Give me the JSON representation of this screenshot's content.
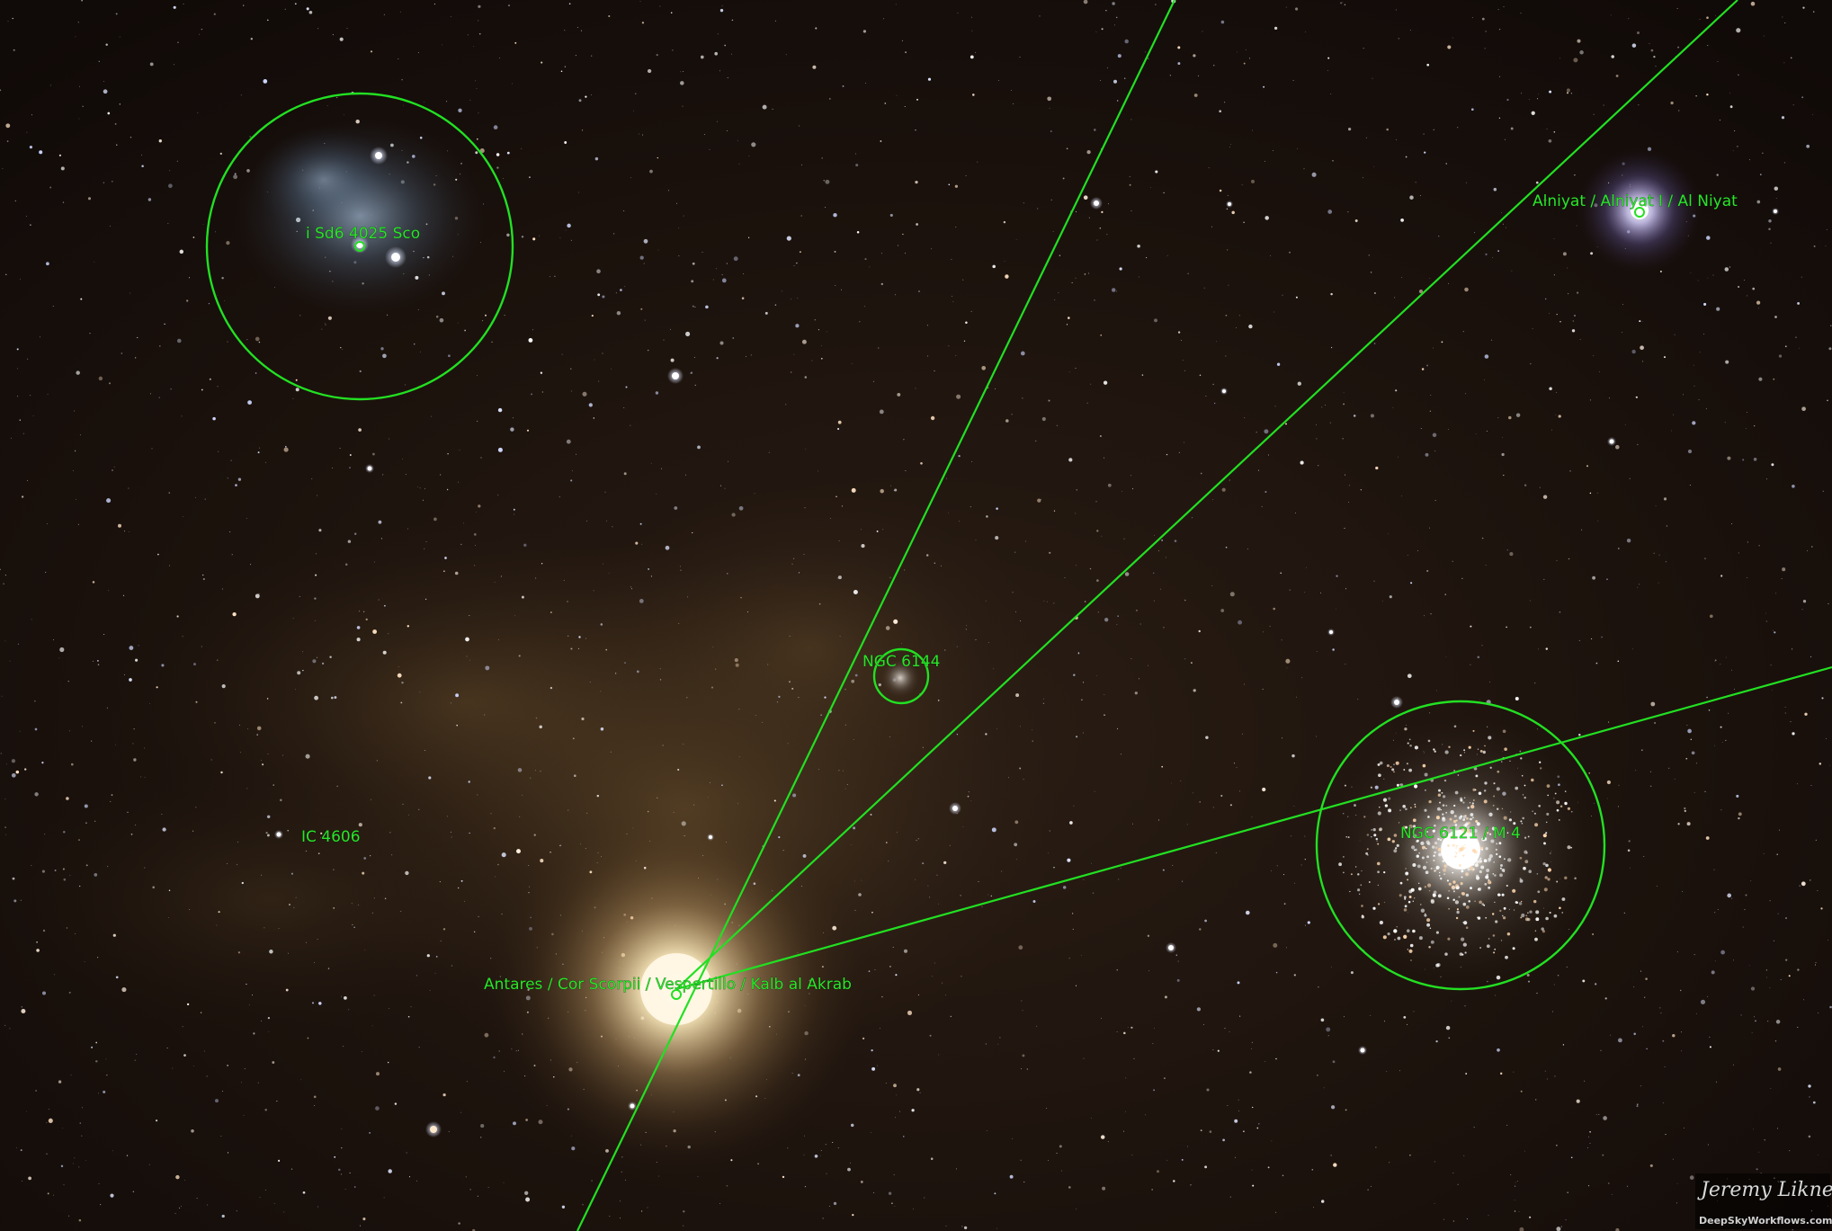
{
  "labels": {
    "i_sco": "i Sd6 4025 Sco",
    "alniyat": "Alniyat / Alniyat I / Al Niyat",
    "ngc6144": "NGC 6144",
    "ngc6121": "NGC 6121 / M 4",
    "ic4606": "IC 4606",
    "antares": "Antares / Cor Scorpii / Vespertillo / Kalb al Akrab"
  },
  "watermark": {
    "name": "Jeremy Likness",
    "site": "DeepSkyWorkflows.com"
  },
  "colors": {
    "overlay": "#22e022",
    "sky": "#120c0a",
    "antares_glow": "#f6e3b4",
    "nebula_blue": "#7f9bb8",
    "nebula_dust": "#8a6a3a"
  }
}
